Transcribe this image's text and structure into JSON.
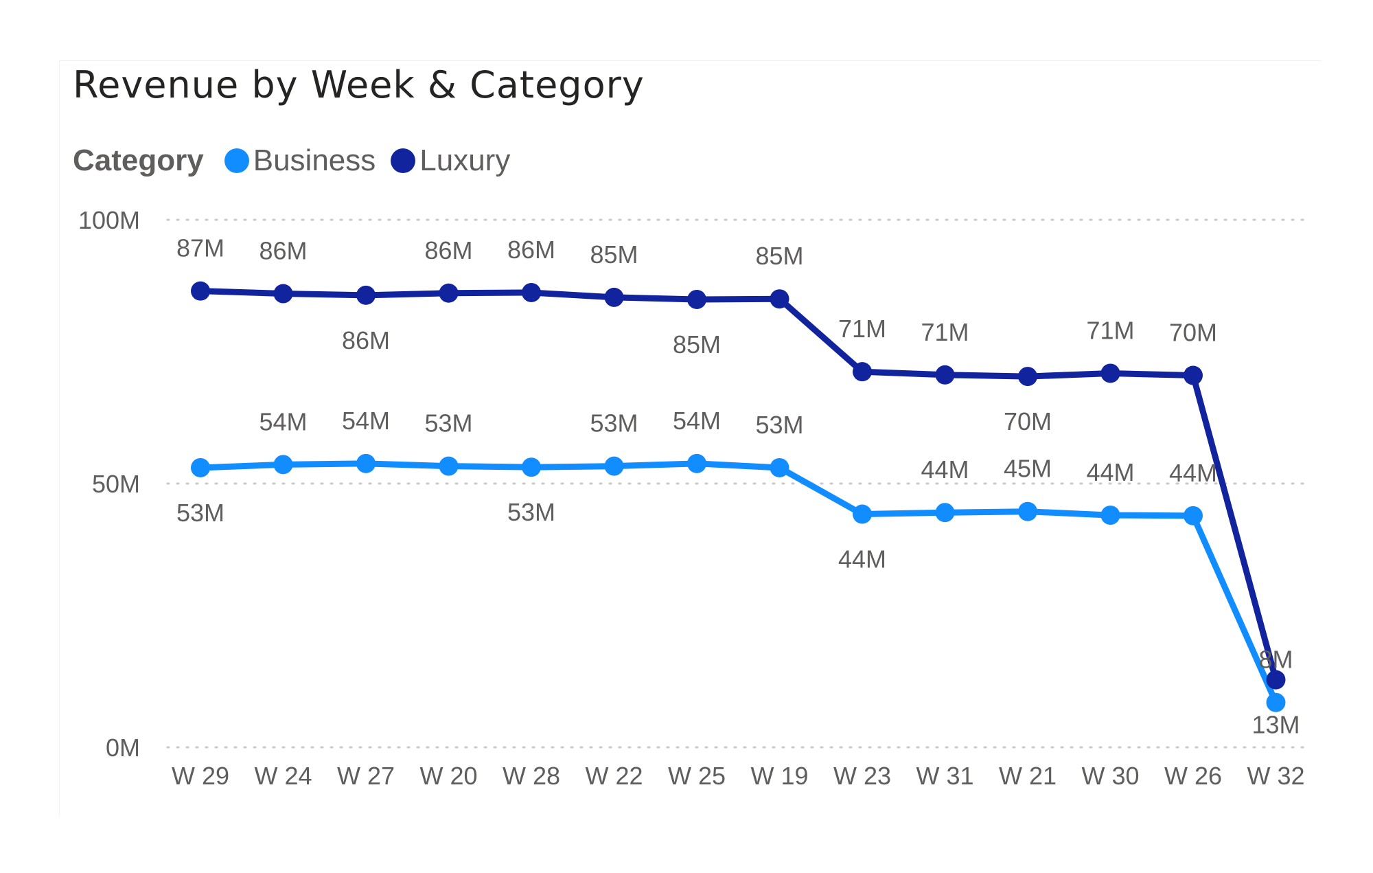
{
  "title": "Revenue by Week & Category",
  "legend": {
    "title": "Category",
    "items": [
      {
        "label": "Business",
        "color": "#118dff"
      },
      {
        "label": "Luxury",
        "color": "#12239e"
      }
    ]
  },
  "chart_data": {
    "type": "line",
    "title": "Revenue by Week & Category",
    "xlabel": "",
    "ylabel": "",
    "ylim": [
      0,
      100
    ],
    "y_ticks": [
      "0M",
      "50M",
      "100M"
    ],
    "y_tick_values": [
      0,
      50,
      100
    ],
    "categories": [
      "W 29",
      "W 24",
      "W 27",
      "W 20",
      "W 28",
      "W 22",
      "W 25",
      "W 19",
      "W 23",
      "W 31",
      "W 21",
      "W 30",
      "W 26",
      "W 32"
    ],
    "grid": "horizontal dotted",
    "legend_position": "top-left",
    "series": [
      {
        "name": "Business",
        "color": "#118dff",
        "values": [
          53,
          53.6,
          53.8,
          53.3,
          53.1,
          53.3,
          53.8,
          53,
          44.2,
          44.5,
          44.7,
          44,
          43.9,
          8.5
        ],
        "labels": [
          "53M",
          "54M",
          "54M",
          "53M",
          "53M",
          "53M",
          "54M",
          "53M",
          "44M",
          "44M",
          "45M",
          "44M",
          "44M",
          "8M"
        ],
        "label_positions": [
          "below",
          "above",
          "above",
          "above",
          "below",
          "above",
          "above",
          "above",
          "below",
          "above",
          "above",
          "above",
          "above",
          "above"
        ]
      },
      {
        "name": "Luxury",
        "color": "#12239e",
        "values": [
          86.5,
          86,
          85.7,
          86.1,
          86.2,
          85.3,
          84.9,
          85,
          71.2,
          70.6,
          70.3,
          70.9,
          70.5,
          12.8
        ],
        "labels": [
          "87M",
          "86M",
          "86M",
          "86M",
          "86M",
          "85M",
          "85M",
          "85M",
          "71M",
          "71M",
          "70M",
          "71M",
          "70M",
          "13M"
        ],
        "label_positions": [
          "above",
          "above",
          "below",
          "above",
          "above",
          "above",
          "below",
          "above",
          "above",
          "above",
          "below",
          "above",
          "above",
          "below"
        ]
      }
    ]
  }
}
